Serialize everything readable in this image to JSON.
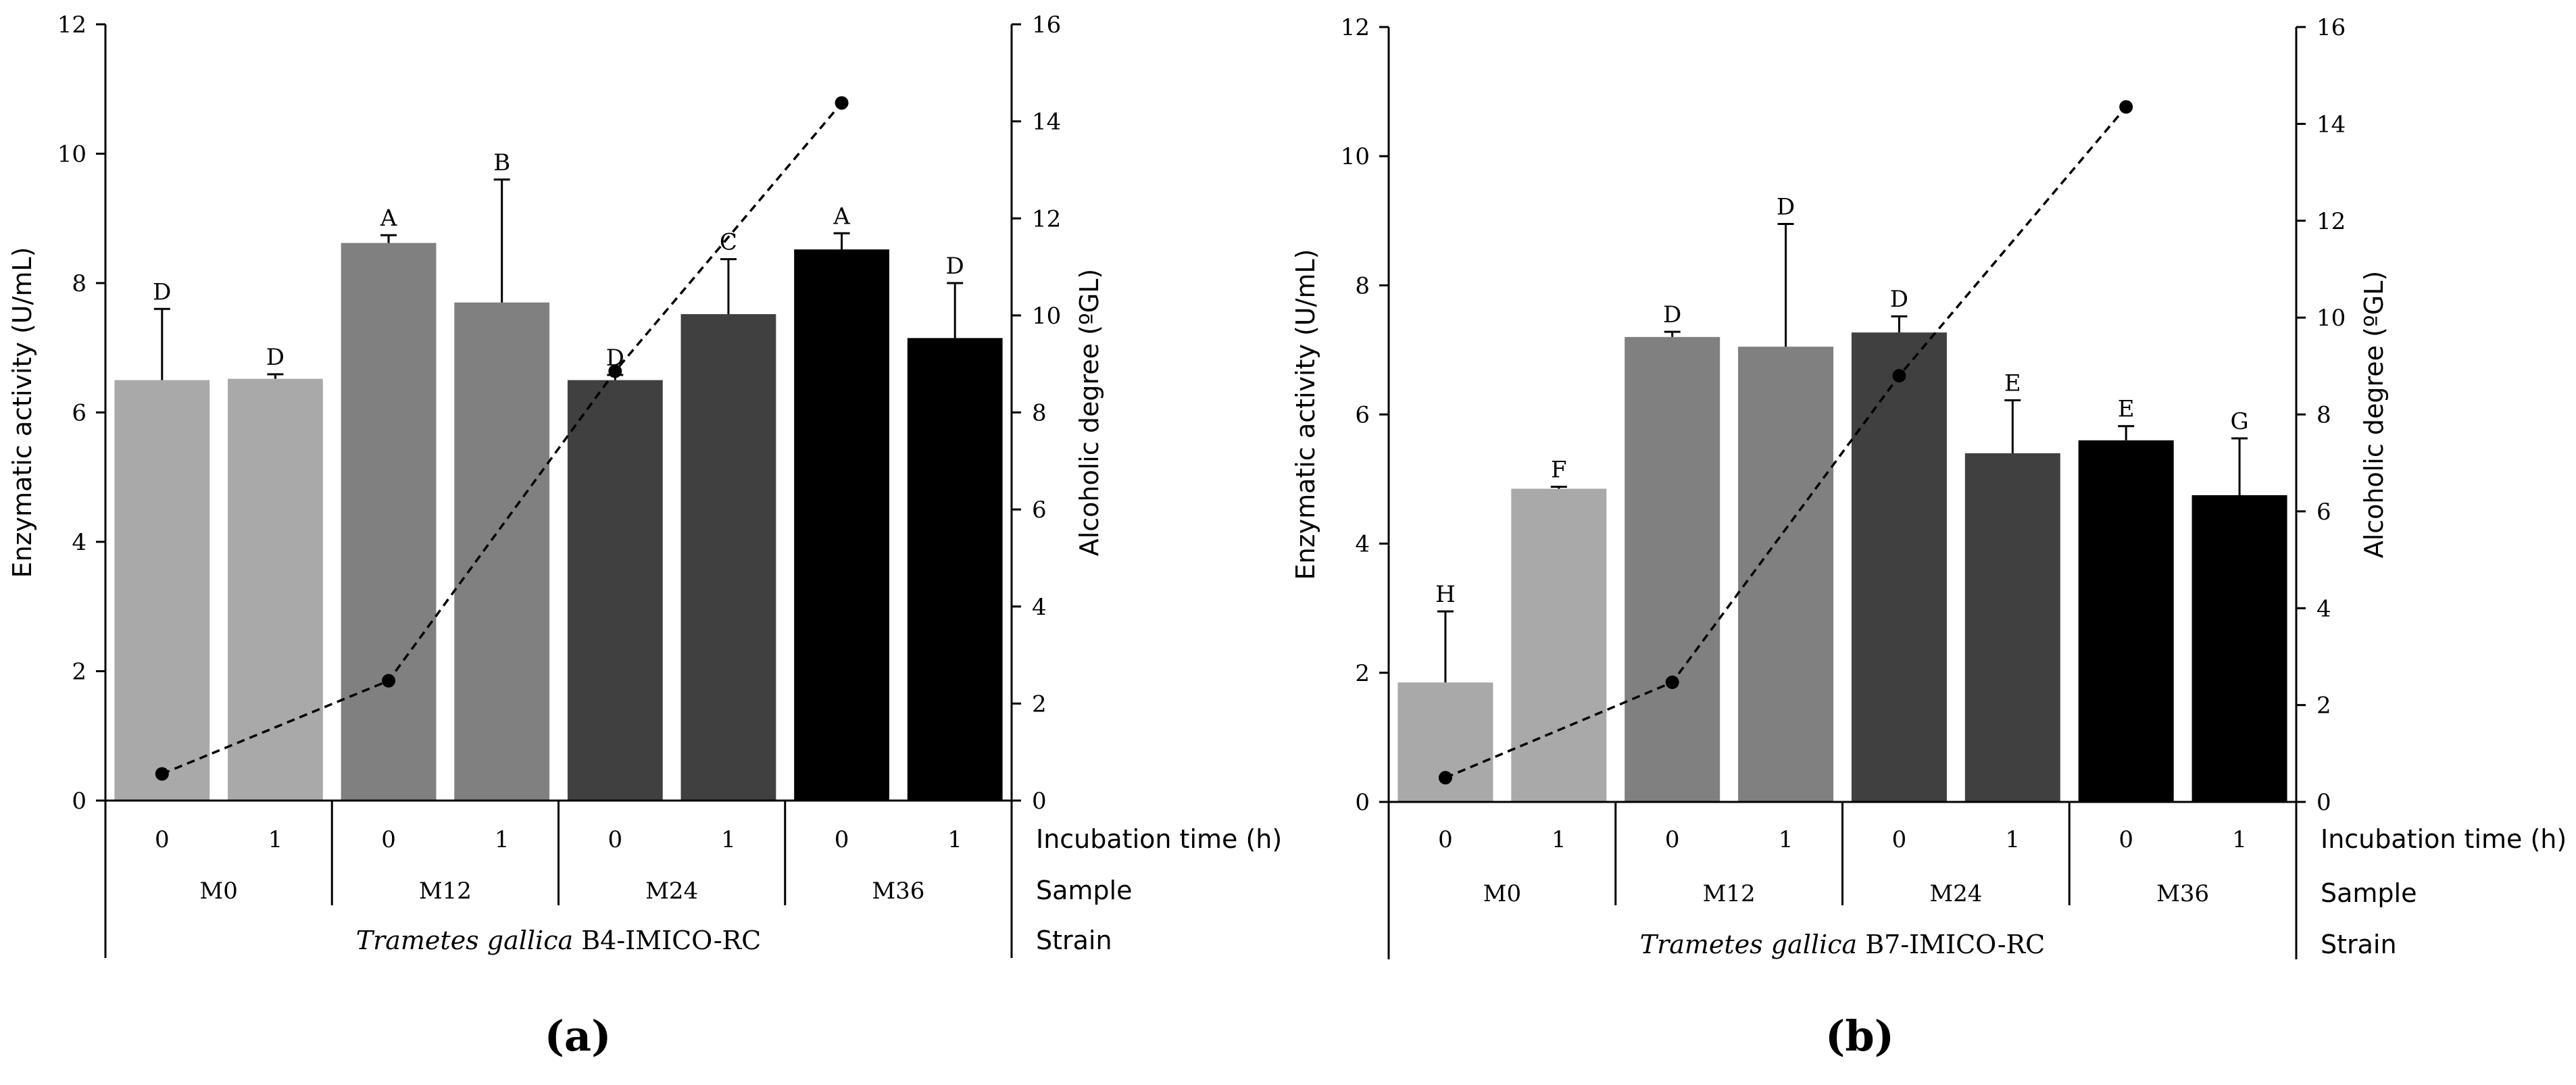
{
  "chart_data": [
    {
      "type": "bar",
      "panel_label": "(a)",
      "strain_italic": "Trametes gallica",
      "strain_suffix": " B4-IMICO-RC",
      "row_labels": {
        "time": "Incubation time (h)",
        "sample": "Sample",
        "strain": "Strain"
      },
      "ylabel_left": "Enzymatic activity (U/mL)",
      "ylabel_right": "Alcoholic degree (ºGL)",
      "ylim_left": [
        0,
        12
      ],
      "yticks_left": [
        "0",
        "2",
        "4",
        "6",
        "8",
        "10",
        "12"
      ],
      "ylim_right": [
        0,
        16
      ],
      "yticks_right": [
        "0",
        "2",
        "4",
        "6",
        "8",
        "10",
        "12",
        "14",
        "16"
      ],
      "groups": [
        "M0",
        "M12",
        "M24",
        "M36"
      ],
      "categories": [
        "0",
        "1",
        "0",
        "1",
        "0",
        "1",
        "0",
        "1"
      ],
      "values": [
        6.5,
        6.52,
        8.62,
        7.7,
        6.5,
        7.52,
        8.52,
        7.15
      ],
      "errors": [
        1.1,
        0.07,
        0.12,
        1.9,
        0.08,
        0.85,
        0.25,
        0.85
      ],
      "significance": [
        "D",
        "D",
        "A",
        "B",
        "D",
        "C",
        "A",
        "D"
      ],
      "bar_colors": [
        "#a9a9a9",
        "#a9a9a9",
        "#808080",
        "#808080",
        "#404040",
        "#404040",
        "#000000",
        "#000000"
      ],
      "line_series": {
        "name": "Alcoholic degree",
        "x_groups": [
          "M0",
          "M12",
          "M24",
          "M36"
        ],
        "values": [
          0.55,
          2.47,
          8.85,
          14.38
        ]
      }
    },
    {
      "type": "bar",
      "panel_label": "(b)",
      "strain_italic": "Trametes gallica",
      "strain_suffix": " B7-IMICO-RC",
      "row_labels": {
        "time": "Incubation time (h)",
        "sample": "Sample",
        "strain": "Strain"
      },
      "ylabel_left": "Enzymatic activity (U/mL)",
      "ylabel_right": "Alcoholic degree (ºGL)",
      "ylim_left": [
        0,
        12
      ],
      "yticks_left": [
        "0",
        "2",
        "4",
        "6",
        "8",
        "10",
        "12"
      ],
      "ylim_right": [
        0,
        16
      ],
      "yticks_right": [
        "0",
        "2",
        "4",
        "6",
        "8",
        "10",
        "12",
        "14",
        "16"
      ],
      "groups": [
        "M0",
        "M12",
        "M24",
        "M36"
      ],
      "categories": [
        "0",
        "1",
        "0",
        "1",
        "0",
        "1",
        "0",
        "1"
      ],
      "values": [
        1.85,
        4.85,
        7.2,
        7.05,
        7.27,
        5.4,
        5.6,
        4.75
      ],
      "errors": [
        1.1,
        0.03,
        0.08,
        1.9,
        0.25,
        0.82,
        0.22,
        0.88
      ],
      "significance": [
        "H",
        "F",
        "D",
        "D",
        "D",
        "E",
        "E",
        "G"
      ],
      "bar_colors": [
        "#a9a9a9",
        "#a9a9a9",
        "#808080",
        "#808080",
        "#404040",
        "#404040",
        "#000000",
        "#000000"
      ],
      "line_series": {
        "name": "Alcoholic degree",
        "x_groups": [
          "M0",
          "M12",
          "M24",
          "M36"
        ],
        "values": [
          0.5,
          2.47,
          8.8,
          14.35
        ]
      }
    }
  ]
}
